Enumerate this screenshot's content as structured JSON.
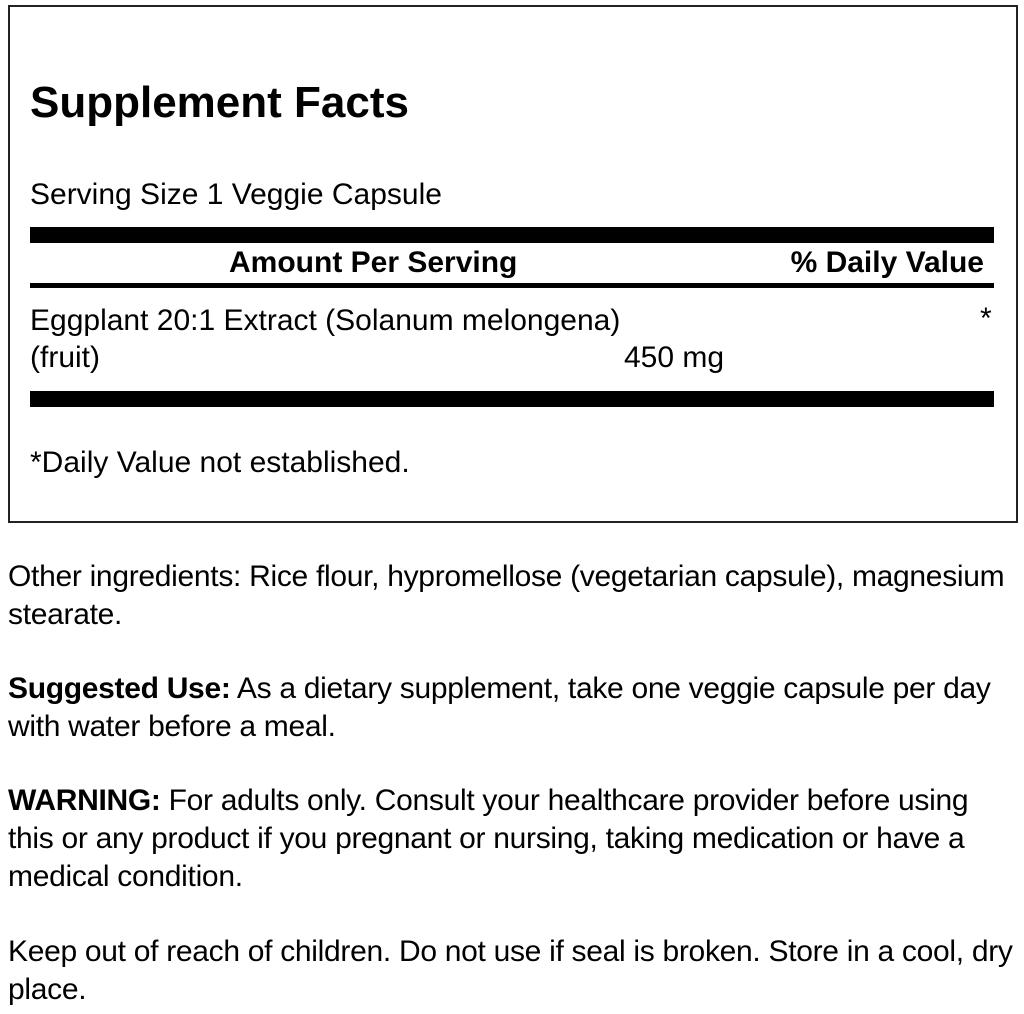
{
  "facts": {
    "title": "Supplement Facts",
    "serving_size": "Serving Size 1 Veggie Capsule",
    "header_amount": "Amount Per Serving",
    "header_dv": "% Daily Value",
    "ingredient": {
      "name_line1": "Eggplant 20:1 Extract (Solanum melongena)",
      "name_line2": "(fruit)",
      "amount": "450 mg",
      "dv": "*"
    },
    "footnote": "*Daily Value not established."
  },
  "other_ingredients": "Other ingredients: Rice flour, hypromellose (vegetarian capsule), magnesium stearate.",
  "suggested_use": {
    "label": "Suggested Use:",
    "text": " As a dietary supplement, take one veggie capsule per day with water before a meal."
  },
  "warning": {
    "label": "WARNING:",
    "text": " For adults only. Consult your healthcare provider before using this or any product if you pregnant or nursing, taking medication or have a medical condition."
  },
  "storage": "Keep out of reach of children. Do not use if seal is broken. Store in a cool, dry place."
}
